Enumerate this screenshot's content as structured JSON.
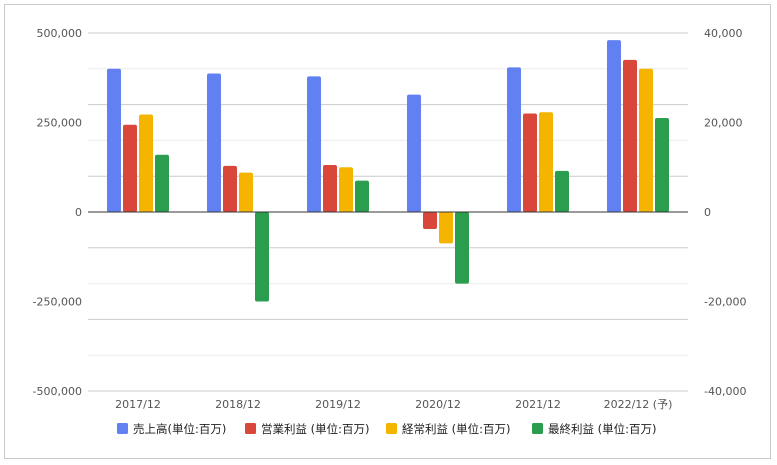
{
  "chart_data": {
    "type": "bar",
    "categories": [
      "2017/12",
      "2018/12",
      "2019/12",
      "2020/12",
      "2021/12",
      "2022/12 (予)"
    ],
    "series": [
      {
        "name": "売上高(単位:百万)",
        "axis": "left",
        "color": "#6180f2",
        "values": [
          400000,
          387000,
          379000,
          328000,
          404000,
          480000
        ]
      },
      {
        "name": "営業利益 (単位:百万)",
        "axis": "right",
        "color": "#d9473a",
        "values": [
          19500,
          10300,
          10500,
          -3800,
          22000,
          34000
        ]
      },
      {
        "name": "経常利益 (単位:百万)",
        "axis": "right",
        "color": "#f4b400",
        "values": [
          21800,
          8800,
          10000,
          -7000,
          22300,
          32000
        ]
      },
      {
        "name": "最終利益 (単位:百万)",
        "axis": "right",
        "color": "#2a9d4f",
        "values": [
          12800,
          -20000,
          7000,
          -16000,
          9200,
          21000
        ]
      }
    ],
    "left_axis": {
      "ylim": [
        -500000,
        500000
      ],
      "ticks": [
        -500000,
        -250000,
        0,
        250000,
        500000
      ],
      "tick_labels": [
        "-500,000",
        "-250,000",
        "0",
        "250,000",
        "500,000"
      ]
    },
    "right_axis": {
      "ylim": [
        -40000,
        40000
      ],
      "ticks": [
        -40000,
        -20000,
        0,
        20000,
        40000
      ],
      "tick_labels": [
        "-40,000",
        "-20,000",
        "0",
        "20,000",
        "40,000"
      ]
    },
    "grid": true,
    "legend_position": "bottom"
  }
}
